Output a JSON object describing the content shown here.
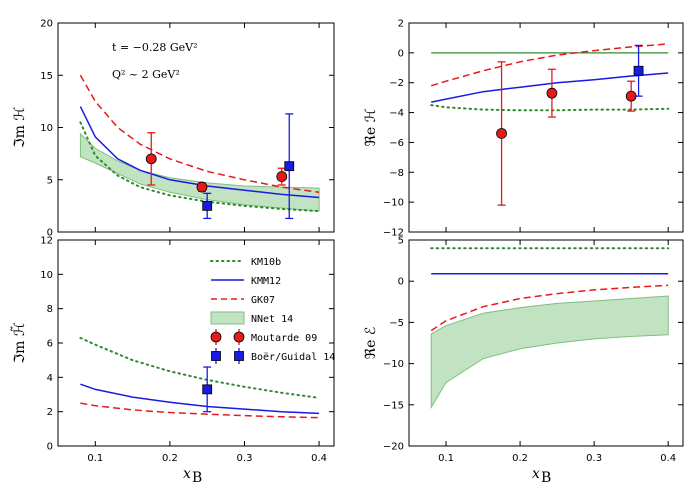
{
  "figure": {
    "xlabel": "x",
    "xlabel_sub": "B",
    "annotation_t": "t = −0.28 GeV²",
    "annotation_q2": "Q² ~ 2 GeV²"
  },
  "colors": {
    "KM10b": "#2e8b2e",
    "KMM12": "#1a1ae6",
    "GK07": "#e61a1a",
    "band_fill": "#c2e3c2",
    "band_edge": "#7fbf7f",
    "moutarde": "#e61a1a",
    "boer": "#1a1ae6"
  },
  "legend": [
    {
      "key": "KM10b",
      "label": "KM10b",
      "style": "dotted"
    },
    {
      "key": "KMM12",
      "label": "KMM12",
      "style": "solid"
    },
    {
      "key": "GK07",
      "label": "GK07",
      "style": "dashed"
    },
    {
      "key": "NNet",
      "label": "NNet 14",
      "style": "band"
    },
    {
      "key": "Moutarde",
      "label": "Moutarde 09",
      "style": "circle"
    },
    {
      "key": "Boer",
      "label": "Boër/Guidal 14",
      "style": "square"
    }
  ],
  "chart_data": [
    {
      "id": "imH",
      "type": "line",
      "ylabel": "ℑm ℋ",
      "xlim": [
        0.05,
        0.42
      ],
      "ylim": [
        0,
        20
      ],
      "xticks": [
        0.1,
        0.2,
        0.3,
        0.4
      ],
      "yticks": [
        0,
        5,
        10,
        15,
        20
      ],
      "show_xticklabels": false,
      "series": [
        {
          "name": "KM10b",
          "style": "dotted",
          "x": [
            0.08,
            0.1,
            0.13,
            0.16,
            0.2,
            0.25,
            0.3,
            0.35,
            0.4
          ],
          "y": [
            10.5,
            7.3,
            5.4,
            4.3,
            3.5,
            2.9,
            2.5,
            2.2,
            2.0
          ]
        },
        {
          "name": "KMM12",
          "style": "solid",
          "x": [
            0.08,
            0.1,
            0.13,
            0.16,
            0.2,
            0.25,
            0.3,
            0.35,
            0.4
          ],
          "y": [
            12.0,
            9.1,
            7.0,
            5.9,
            5.0,
            4.4,
            4.0,
            3.6,
            3.3
          ]
        },
        {
          "name": "GK07",
          "style": "dashed",
          "x": [
            0.08,
            0.1,
            0.13,
            0.16,
            0.2,
            0.25,
            0.3,
            0.35,
            0.4
          ],
          "y": [
            15.0,
            12.5,
            10.0,
            8.4,
            7.0,
            5.8,
            5.0,
            4.3,
            3.8
          ]
        }
      ],
      "band": {
        "name": "NNet 14",
        "x": [
          0.08,
          0.1,
          0.13,
          0.16,
          0.2,
          0.25,
          0.3,
          0.35,
          0.4
        ],
        "lower": [
          7.2,
          6.6,
          5.6,
          4.6,
          3.8,
          3.1,
          2.6,
          2.3,
          2.0
        ],
        "upper": [
          9.4,
          8.0,
          6.8,
          5.9,
          5.2,
          4.7,
          4.4,
          4.3,
          4.2
        ]
      },
      "points": [
        {
          "name": "Moutarde 09",
          "marker": "circle",
          "x": [
            0.175,
            0.243,
            0.35
          ],
          "y": [
            7.0,
            4.3,
            5.3
          ],
          "err": [
            2.5,
            0.4,
            0.8
          ]
        },
        {
          "name": "Boër/Guidal 14",
          "marker": "square",
          "x": [
            0.25,
            0.36
          ],
          "y": [
            2.5,
            6.3
          ],
          "err": [
            1.2,
            5.0
          ]
        }
      ]
    },
    {
      "id": "reH",
      "type": "line",
      "ylabel": "ℜe ℋ",
      "xlim": [
        0.05,
        0.42
      ],
      "ylim": [
        -12,
        2
      ],
      "xticks": [
        0.1,
        0.2,
        0.3,
        0.4
      ],
      "yticks": [
        -12,
        -10,
        -8,
        -6,
        -4,
        -2,
        0,
        2
      ],
      "show_xticklabels": false,
      "zero_line": true,
      "series": [
        {
          "name": "KM10b",
          "style": "dotted",
          "x": [
            0.08,
            0.1,
            0.15,
            0.2,
            0.25,
            0.3,
            0.35,
            0.4
          ],
          "y": [
            -3.5,
            -3.65,
            -3.8,
            -3.85,
            -3.85,
            -3.8,
            -3.8,
            -3.75
          ]
        },
        {
          "name": "KMM12",
          "style": "solid",
          "x": [
            0.08,
            0.1,
            0.15,
            0.2,
            0.25,
            0.3,
            0.35,
            0.4
          ],
          "y": [
            -3.3,
            -3.1,
            -2.6,
            -2.3,
            -2.0,
            -1.8,
            -1.55,
            -1.35
          ]
        },
        {
          "name": "GK07",
          "style": "dashed",
          "x": [
            0.08,
            0.1,
            0.15,
            0.2,
            0.25,
            0.3,
            0.35,
            0.4
          ],
          "y": [
            -2.2,
            -1.9,
            -1.2,
            -0.6,
            -0.15,
            0.15,
            0.4,
            0.6
          ]
        }
      ],
      "points": [
        {
          "name": "Moutarde 09",
          "marker": "circle",
          "x": [
            0.175,
            0.243,
            0.35
          ],
          "y": [
            -5.4,
            -2.7,
            -2.9
          ],
          "err": [
            4.8,
            1.6,
            1.0
          ]
        },
        {
          "name": "Boër/Guidal 14",
          "marker": "square",
          "x": [
            0.36
          ],
          "y": [
            -1.2
          ],
          "err": [
            1.7
          ]
        }
      ]
    },
    {
      "id": "imHt",
      "type": "line",
      "ylabel": "ℑm ℋ̃",
      "xlim": [
        0.05,
        0.42
      ],
      "ylim": [
        0,
        12
      ],
      "xticks": [
        0.1,
        0.2,
        0.3,
        0.4
      ],
      "yticks": [
        0,
        2,
        4,
        6,
        8,
        10,
        12
      ],
      "xticklabels": [
        "0.1",
        "0.2",
        "0.3",
        "0.4"
      ],
      "show_xticklabels": true,
      "series": [
        {
          "name": "KM10b",
          "style": "dotted",
          "x": [
            0.08,
            0.1,
            0.15,
            0.2,
            0.25,
            0.3,
            0.35,
            0.4
          ],
          "y": [
            6.3,
            5.9,
            5.0,
            4.35,
            3.85,
            3.45,
            3.1,
            2.8
          ]
        },
        {
          "name": "KMM12",
          "style": "solid",
          "x": [
            0.08,
            0.1,
            0.15,
            0.2,
            0.25,
            0.3,
            0.35,
            0.4
          ],
          "y": [
            3.6,
            3.3,
            2.85,
            2.55,
            2.3,
            2.15,
            2.0,
            1.9
          ]
        },
        {
          "name": "GK07",
          "style": "dashed",
          "x": [
            0.08,
            0.1,
            0.15,
            0.2,
            0.25,
            0.3,
            0.35,
            0.4
          ],
          "y": [
            2.5,
            2.35,
            2.1,
            1.95,
            1.85,
            1.77,
            1.7,
            1.65
          ]
        }
      ],
      "points": [
        {
          "name": "Boër/Guidal 14",
          "marker": "square",
          "x": [
            0.25
          ],
          "y": [
            3.3
          ],
          "err": [
            1.3
          ]
        }
      ]
    },
    {
      "id": "reE",
      "type": "line",
      "ylabel": "ℜe ℰ",
      "xlim": [
        0.05,
        0.42
      ],
      "ylim": [
        -20,
        5
      ],
      "xticks": [
        0.1,
        0.2,
        0.3,
        0.4
      ],
      "yticks": [
        -20,
        -15,
        -10,
        -5,
        0,
        5
      ],
      "xticklabels": [
        "0.1",
        "0.2",
        "0.3",
        "0.4"
      ],
      "show_xticklabels": true,
      "series": [
        {
          "name": "KM10b",
          "style": "dotted",
          "x": [
            0.08,
            0.4
          ],
          "y": [
            4.0,
            4.0
          ]
        },
        {
          "name": "KMM12",
          "style": "solid",
          "x": [
            0.08,
            0.4
          ],
          "y": [
            0.9,
            0.9
          ]
        },
        {
          "name": "GK07",
          "style": "dashed",
          "x": [
            0.08,
            0.1,
            0.15,
            0.2,
            0.25,
            0.3,
            0.35,
            0.4
          ],
          "y": [
            -6.0,
            -4.8,
            -3.1,
            -2.1,
            -1.5,
            -1.05,
            -0.75,
            -0.5
          ]
        }
      ],
      "band": {
        "name": "NNet 14",
        "x": [
          0.08,
          0.1,
          0.15,
          0.2,
          0.25,
          0.3,
          0.35,
          0.4
        ],
        "lower": [
          -15.3,
          -12.3,
          -9.4,
          -8.2,
          -7.5,
          -7.0,
          -6.7,
          -6.5
        ],
        "upper": [
          -6.4,
          -5.4,
          -3.9,
          -3.2,
          -2.7,
          -2.4,
          -2.1,
          -1.8
        ]
      }
    }
  ]
}
